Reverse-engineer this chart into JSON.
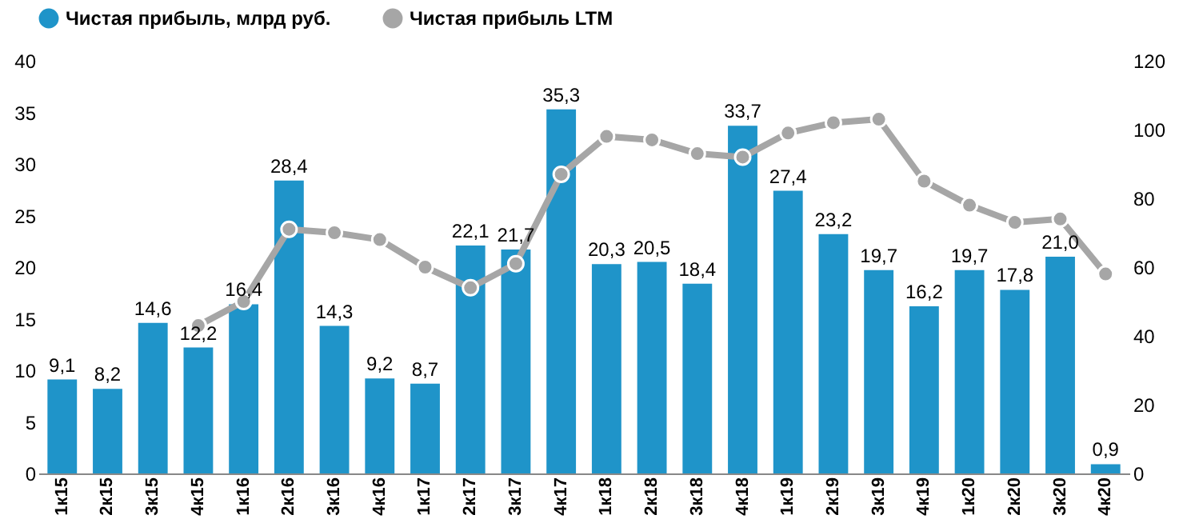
{
  "chart_data": {
    "type": "bar",
    "categories": [
      "1к15",
      "2к15",
      "3к15",
      "4к15",
      "1к16",
      "2к16",
      "3к16",
      "4к16",
      "1к17",
      "2к17",
      "3к17",
      "4к17",
      "1к18",
      "2к18",
      "3к18",
      "4к18",
      "1к19",
      "2к19",
      "3к19",
      "4к19",
      "1к20",
      "2к20",
      "3к20",
      "4к20"
    ],
    "series": [
      {
        "name": "Чистая прибыль, млрд руб.",
        "color": "#1f94c9",
        "values": [
          9.1,
          8.2,
          14.6,
          12.2,
          16.4,
          28.4,
          14.3,
          9.2,
          8.7,
          22.1,
          21.7,
          35.3,
          20.3,
          20.5,
          18.4,
          33.7,
          27.4,
          23.2,
          19.7,
          16.2,
          19.7,
          17.8,
          21.0,
          0.9
        ],
        "value_labels": [
          "9,1",
          "8,2",
          "14,6",
          "12,2",
          "16,4",
          "28,4",
          "14,3",
          "9,2",
          "8,7",
          "22,1",
          "21,7",
          "35,3",
          "20,3",
          "20,5",
          "18,4",
          "33,7",
          "27,4",
          "23,2",
          "19,7",
          "16,2",
          "19,7",
          "17,8",
          "21,0",
          "0,9"
        ]
      },
      {
        "name": "Чистая прибыль LTM",
        "color": "#a6a6a6",
        "type": "line",
        "axis": "y2",
        "marker": "circle",
        "values": [
          null,
          null,
          null,
          43,
          50,
          71,
          70,
          68,
          60,
          54,
          61,
          87,
          98,
          97,
          93,
          92,
          99,
          102,
          103,
          85,
          78,
          73,
          74,
          58
        ]
      }
    ],
    "ylim": [
      0,
      40
    ],
    "yticks": [
      0,
      5,
      10,
      15,
      20,
      25,
      30,
      35,
      40
    ],
    "y2lim": [
      0,
      120
    ],
    "y2ticks": [
      0,
      20,
      40,
      60,
      80,
      100,
      120
    ],
    "legend": "top",
    "grid": false
  }
}
